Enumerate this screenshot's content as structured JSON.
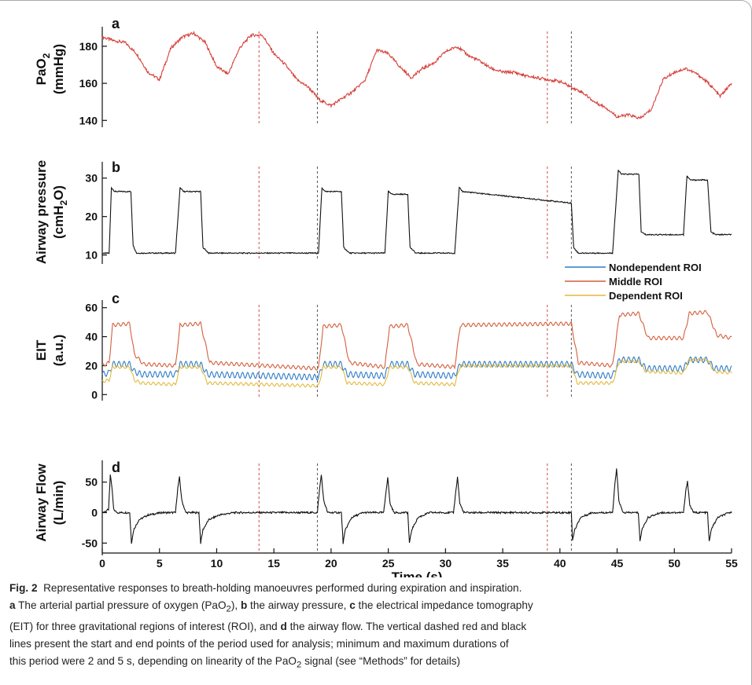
{
  "colors": {
    "pao2": "#d6403a",
    "airway_pressure": "#111111",
    "nondependent": "#2e7cc7",
    "middle": "#d35f3c",
    "dependent": "#e2b93b",
    "flow": "#111111",
    "marker_red": "#d04a4a",
    "marker_black": "#555555"
  },
  "chart_data": [
    {
      "panel": "a",
      "type": "line",
      "ylabel": "PaO2",
      "ylabel_unit": "(mmHg)",
      "ylim": [
        138,
        188
      ],
      "yticks": [
        140,
        160,
        180
      ],
      "xlim": [
        0,
        55
      ],
      "series": [
        {
          "key": "pao2",
          "x": [
            0,
            1,
            2,
            3,
            4,
            5,
            6,
            7,
            8,
            9,
            10,
            11,
            12,
            13,
            14,
            15,
            16,
            17,
            18,
            19,
            20,
            21,
            22,
            23,
            24,
            25,
            26,
            27,
            28,
            29,
            30,
            31,
            32,
            33,
            34,
            35,
            36,
            37,
            38,
            39,
            40,
            41,
            42,
            43,
            44,
            45,
            46,
            47,
            48,
            49,
            50,
            51,
            52,
            53,
            54,
            55
          ],
          "y": [
            185,
            183,
            182,
            176,
            166,
            162,
            179,
            185,
            187,
            182,
            169,
            165,
            179,
            186,
            186,
            176,
            170,
            162,
            158,
            151,
            148,
            152,
            156,
            162,
            178,
            176,
            169,
            163,
            168,
            171,
            177,
            180,
            175,
            172,
            168,
            166,
            166,
            164,
            163,
            162,
            161,
            158,
            155,
            150,
            147,
            142,
            143,
            141,
            146,
            162,
            166,
            168,
            165,
            160,
            153,
            160
          ]
        }
      ],
      "markers": {
        "red": [
          13.7,
          38.9
        ],
        "black": [
          18.8,
          41.0
        ]
      }
    },
    {
      "panel": "b",
      "type": "line",
      "ylabel": "Airway pressure",
      "ylabel_unit": "(cmH2O)",
      "ylim": [
        8.5,
        33
      ],
      "yticks": [
        10,
        20,
        30
      ],
      "xlim": [
        0,
        55
      ],
      "series": [
        {
          "key": "airway_pressure",
          "x": [
            0,
            0.6,
            0.8,
            1.1,
            2.5,
            2.7,
            3.0,
            6.4,
            6.8,
            7.1,
            8.6,
            8.8,
            9.3,
            18.9,
            19.2,
            19.5,
            20.9,
            21.1,
            21.6,
            24.7,
            25.0,
            25.3,
            26.7,
            26.9,
            27.4,
            30.8,
            31.2,
            31.5,
            41.0,
            41.2,
            41.6,
            44.6,
            45.1,
            45.4,
            46.9,
            47.1,
            47.5,
            50.8,
            51.1,
            51.4,
            52.9,
            53.2,
            53.6,
            55
          ],
          "y": [
            10.4,
            10.5,
            27.5,
            26.5,
            26.5,
            12.5,
            10.5,
            10.5,
            27.5,
            26.5,
            26.5,
            12.0,
            10.5,
            10.5,
            27.5,
            26.5,
            26.5,
            12.0,
            10.5,
            10.5,
            26.5,
            25.8,
            25.8,
            12.0,
            10.5,
            10.5,
            27.5,
            26.5,
            23.5,
            12.0,
            10.5,
            10.5,
            32.0,
            31.0,
            31.0,
            16.0,
            15.3,
            15.3,
            30.5,
            29.5,
            29.5,
            16.0,
            15.3,
            15.3
          ]
        }
      ],
      "markers": {
        "red": [
          13.7,
          38.9
        ],
        "black": [
          18.8,
          41.0
        ]
      }
    },
    {
      "panel": "c",
      "type": "line",
      "ylabel": "EIT",
      "ylabel_unit": "(a.u.)",
      "ylim": [
        -2,
        62
      ],
      "yticks": [
        0,
        20,
        40,
        60
      ],
      "xlim": [
        0,
        55
      ],
      "legend": {
        "position": "top-right",
        "entries": [
          "Nondependent ROI",
          "Middle ROI",
          "Dependent ROI"
        ]
      },
      "series": [
        {
          "name": "Nondependent ROI",
          "key": "nondependent",
          "x": [
            0,
            0.6,
            0.9,
            2.4,
            2.8,
            3.4,
            6.4,
            6.8,
            8.6,
            9.2,
            18.9,
            19.3,
            20.9,
            21.4,
            24.7,
            25.1,
            26.7,
            27.3,
            30.8,
            31.3,
            41.0,
            41.5,
            44.6,
            45.2,
            46.9,
            47.5,
            50.8,
            51.3,
            52.9,
            53.5,
            55
          ],
          "y": [
            14,
            15,
            21,
            21,
            16,
            14,
            14,
            21,
            21,
            14,
            12,
            21,
            21,
            14,
            13,
            21,
            21,
            14,
            13,
            21,
            21,
            14,
            13,
            24,
            24,
            18,
            18,
            24,
            24,
            18,
            18
          ],
          "ripple": 2.0
        },
        {
          "name": "Middle ROI",
          "key": "middle",
          "x": [
            0,
            0.6,
            0.9,
            2.4,
            2.8,
            3.6,
            6.4,
            6.8,
            8.6,
            9.4,
            18.9,
            19.3,
            20.9,
            21.6,
            24.7,
            25.1,
            26.7,
            27.5,
            30.8,
            31.3,
            41.0,
            41.6,
            44.6,
            45.2,
            46.9,
            47.7,
            50.8,
            51.3,
            52.9,
            53.7,
            55
          ],
          "y": [
            20,
            22,
            48,
            49,
            28,
            21,
            20,
            48,
            49,
            22,
            18,
            47,
            48,
            22,
            19,
            47,
            48,
            21,
            19,
            48,
            49,
            22,
            20,
            55,
            56,
            39,
            39,
            56,
            57,
            41,
            39
          ],
          "ripple": 1.2
        },
        {
          "name": "Dependent ROI",
          "key": "dependent",
          "x": [
            0,
            0.6,
            0.9,
            2.4,
            2.8,
            3.4,
            6.4,
            6.8,
            8.6,
            9.2,
            18.9,
            19.3,
            20.9,
            21.4,
            24.7,
            25.1,
            26.7,
            27.3,
            30.8,
            31.3,
            41.0,
            41.5,
            44.6,
            45.2,
            46.9,
            47.5,
            50.8,
            51.3,
            52.9,
            53.5,
            55
          ],
          "y": [
            9,
            10,
            19,
            19,
            10,
            8,
            7,
            19,
            19,
            8,
            6,
            19,
            19,
            8,
            7,
            19,
            19,
            8,
            7,
            20,
            20,
            8,
            8,
            23,
            23,
            16,
            15,
            24,
            24,
            16,
            15
          ],
          "ripple": 1.0
        }
      ],
      "markers": {
        "red": [
          13.7,
          38.9
        ],
        "black": [
          18.8,
          41.0
        ]
      }
    },
    {
      "panel": "d",
      "type": "line",
      "ylabel": "Airway Flow",
      "ylabel_unit": "(L/min)",
      "xlabel": "Time (s)",
      "ylim": [
        -65,
        78
      ],
      "yticks": [
        50,
        0,
        -50
      ],
      "xlim": [
        0,
        55
      ],
      "xticks": [
        0,
        5,
        10,
        15,
        20,
        25,
        30,
        35,
        40,
        45,
        50,
        55
      ],
      "series": [
        {
          "key": "flow",
          "x": [
            0,
            0.55,
            0.7,
            0.85,
            1.0,
            1.3,
            2.4,
            2.55,
            2.75,
            3.2,
            4.0,
            5.2,
            6.4,
            6.6,
            6.75,
            6.95,
            7.3,
            8.45,
            8.6,
            8.8,
            9.3,
            10.2,
            11.5,
            18.8,
            19.0,
            19.15,
            19.35,
            19.7,
            20.9,
            21.05,
            21.25,
            21.8,
            22.8,
            24.6,
            24.8,
            24.95,
            25.15,
            25.5,
            26.7,
            26.85,
            27.05,
            27.6,
            28.6,
            30.7,
            30.9,
            31.05,
            31.25,
            31.6,
            41.0,
            41.1,
            41.3,
            41.8,
            42.8,
            44.6,
            44.8,
            44.95,
            45.15,
            45.5,
            46.85,
            47.0,
            47.2,
            47.7,
            48.8,
            50.8,
            51.0,
            51.15,
            51.35,
            51.7,
            52.9,
            53.05,
            53.25,
            53.8,
            54.8,
            55
          ],
          "y": [
            0,
            5,
            62,
            40,
            5,
            0,
            0,
            -50,
            -28,
            -12,
            -4,
            0,
            0,
            40,
            58,
            20,
            0,
            0,
            -50,
            -28,
            -12,
            -4,
            0,
            0,
            40,
            62,
            20,
            0,
            0,
            -50,
            -28,
            -8,
            0,
            0,
            35,
            58,
            15,
            0,
            0,
            -50,
            -28,
            -8,
            0,
            0,
            35,
            58,
            15,
            0,
            0,
            -45,
            -28,
            -8,
            0,
            0,
            45,
            72,
            20,
            0,
            0,
            -46,
            -26,
            -8,
            0,
            0,
            35,
            52,
            12,
            0,
            0,
            -48,
            -26,
            -8,
            0,
            0
          ],
          "noise": 1.5
        }
      ],
      "markers": {
        "red": [
          13.7,
          38.9
        ],
        "black": [
          18.8,
          41.0
        ]
      }
    }
  ],
  "caption": {
    "fig_label": "Fig. 2",
    "line1": "Representative responses to breath-holding manoeuvres performed during expiration and inspiration.",
    "a_letter": "a",
    "a_text_1": " The arterial partial pressure of oxygen (PaO",
    "a_sub": "2",
    "a_text_2": "), ",
    "b_letter": "b",
    "b_text": " the airway pressure, ",
    "c_letter": "c",
    "c_text": " the electrical impedance tomography",
    "line3": "(EIT) for three gravitational regions of interest (ROI), and",
    "d_letter": "d",
    "d_text": " the airway flow. The vertical dashed red and black",
    "line4": "lines present the start and end points of the period used for analysis; minimum and maximum durations of",
    "line5_1": "this period were 2 and 5 s, depending on linearity of the PaO",
    "line5_sub": "2",
    "line5_2": " signal (see “Methods” for details)"
  }
}
